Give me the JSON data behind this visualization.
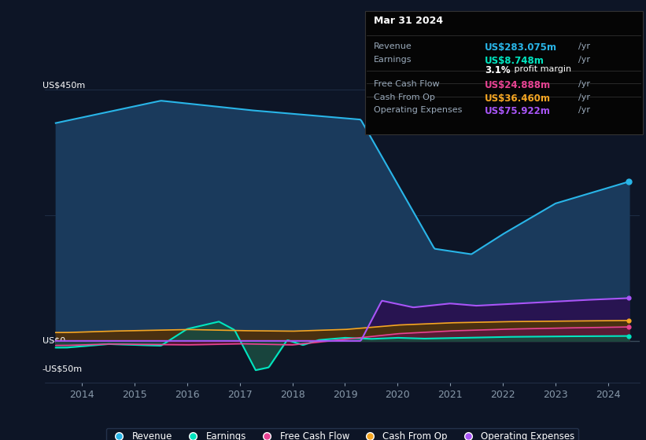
{
  "bg_color": "#0d1526",
  "plot_bg_color": "#0d1526",
  "title": "Mar 31 2024",
  "ylabel_top": "US$450m",
  "ylabel_zero": "US$0",
  "ylabel_neg": "-US$50m",
  "ylim": [
    -75,
    500
  ],
  "xlim": [
    2013.3,
    2024.6
  ],
  "revenue_color": "#29b5e8",
  "revenue_fill": "#1a3a5c",
  "earnings_color": "#00e5c0",
  "earnings_fill": "#1a4a40",
  "fcf_color": "#e84393",
  "fcf_fill": "#5a1a3a",
  "cashfromop_color": "#f5a623",
  "cashfromop_fill": "#4a3010",
  "opex_color": "#a855f7",
  "opex_fill": "#2a1050",
  "grid_color": "#1e2d45",
  "legend_bg": "#0d1526",
  "legend_border": "#2a3a55",
  "info_box_bg": "#050505",
  "info_box_border": "#333333",
  "revenue_value": "US$283.075m",
  "earnings_value": "US$8.748m",
  "profit_margin": "3.1%",
  "fcf_value": "US$24.888m",
  "cashfromop_value": "US$36.460m",
  "opex_value": "US$75.922m"
}
